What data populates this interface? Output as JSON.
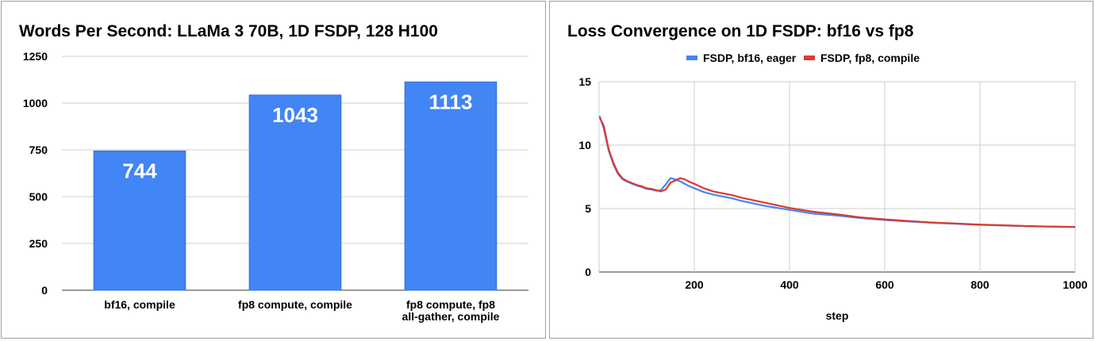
{
  "chart_data": [
    {
      "type": "bar",
      "title": "Words Per Second: LLaMa 3 70B, 1D FSDP, 128 H100",
      "categories": [
        "bf16, compile",
        "fp8 compute, compile",
        "fp8 compute, fp8 all-gather, compile"
      ],
      "category_lines": [
        [
          "bf16, compile"
        ],
        [
          "fp8 compute, compile"
        ],
        [
          "fp8 compute, fp8",
          "all-gather, compile"
        ]
      ],
      "values": [
        744,
        1043,
        1113
      ],
      "data_labels": [
        "744",
        "1043",
        "1113"
      ],
      "ylim": [
        0,
        1250
      ],
      "yticks": [
        0,
        250,
        500,
        750,
        1000,
        1250
      ],
      "grid": true,
      "color": "#4285f4"
    },
    {
      "type": "line",
      "title": "Loss Convergence on 1D FSDP: bf16 vs fp8",
      "xlabel": "step",
      "ylabel": "",
      "xlim": [
        0,
        1000
      ],
      "ylim": [
        0,
        15
      ],
      "xticks": [
        200,
        400,
        600,
        800,
        1000
      ],
      "yticks": [
        0,
        5,
        10,
        15
      ],
      "grid": true,
      "legend_position": "top",
      "series": [
        {
          "name": "FSDP, bf16, eager",
          "color": "#4285f4",
          "x": [
            1,
            10,
            20,
            30,
            40,
            50,
            60,
            70,
            80,
            90,
            100,
            110,
            120,
            130,
            140,
            150,
            160,
            170,
            180,
            190,
            200,
            220,
            240,
            260,
            280,
            300,
            350,
            400,
            450,
            500,
            550,
            600,
            650,
            700,
            750,
            800,
            850,
            900,
            950,
            1000
          ],
          "y": [
            12.3,
            11.3,
            9.6,
            8.5,
            7.7,
            7.3,
            7.1,
            6.95,
            6.8,
            6.7,
            6.55,
            6.5,
            6.4,
            6.45,
            6.9,
            7.4,
            7.3,
            7.15,
            6.95,
            6.75,
            6.6,
            6.3,
            6.1,
            5.95,
            5.8,
            5.6,
            5.2,
            4.9,
            4.6,
            4.45,
            4.25,
            4.1,
            3.98,
            3.88,
            3.8,
            3.72,
            3.66,
            3.61,
            3.57,
            3.55
          ]
        },
        {
          "name": "FSDP, fp8, compile",
          "color": "#db3a2f",
          "x": [
            1,
            10,
            20,
            30,
            40,
            50,
            60,
            70,
            80,
            90,
            100,
            110,
            120,
            130,
            140,
            150,
            160,
            170,
            180,
            190,
            200,
            220,
            240,
            260,
            280,
            300,
            350,
            400,
            450,
            500,
            550,
            600,
            650,
            700,
            750,
            800,
            850,
            900,
            950,
            1000
          ],
          "y": [
            12.2,
            11.5,
            9.7,
            8.6,
            7.8,
            7.35,
            7.15,
            7.0,
            6.85,
            6.75,
            6.6,
            6.55,
            6.45,
            6.35,
            6.5,
            7.05,
            7.2,
            7.4,
            7.3,
            7.1,
            6.95,
            6.6,
            6.35,
            6.2,
            6.05,
            5.85,
            5.45,
            5.05,
            4.75,
            4.55,
            4.3,
            4.15,
            4.02,
            3.9,
            3.82,
            3.74,
            3.68,
            3.62,
            3.58,
            3.55
          ]
        }
      ]
    }
  ]
}
